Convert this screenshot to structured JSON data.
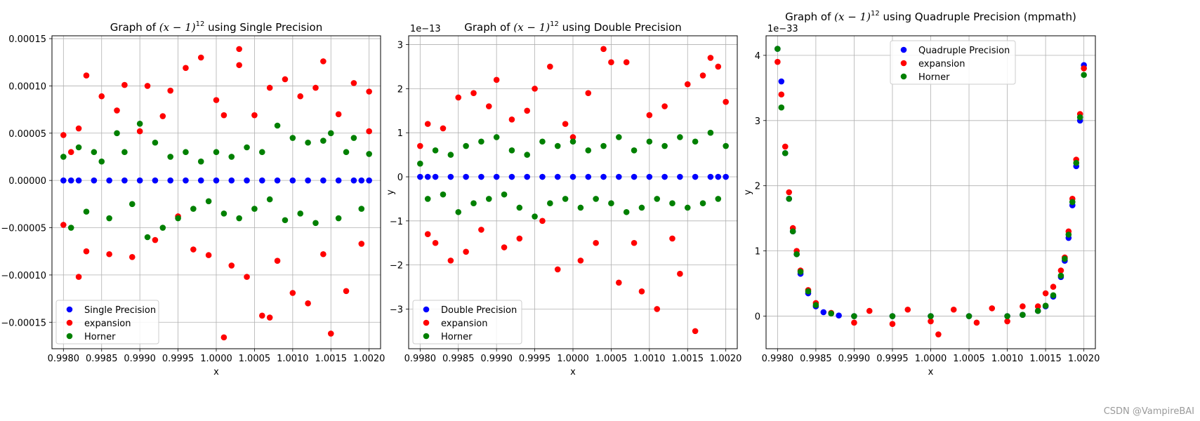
{
  "watermark": "CSDN @VampireBAI",
  "colors": {
    "blue": "#0000ff",
    "red": "#ff0000",
    "green": "#008000",
    "grid": "#b0b0b0"
  },
  "chart_data": [
    {
      "type": "scatter",
      "title": "Graph of $(x-1)^{12}$ using Single Precision",
      "title_prefix": "Graph of ",
      "title_suffix": " using Single Precision",
      "xlabel": "x",
      "ylabel": "",
      "xlim": [
        0.99785,
        1.00215
      ],
      "ylim": [
        -0.000178,
        0.000153
      ],
      "xticks": [
        0.998,
        0.9985,
        0.999,
        0.9995,
        1.0,
        1.0005,
        1.001,
        1.0015,
        1.002
      ],
      "xtick_labels": [
        "0.9980",
        "0.9985",
        "0.9990",
        "0.9995",
        "1.0000",
        "1.0005",
        "1.0010",
        "1.0015",
        "1.0020"
      ],
      "yticks": [
        -0.00015,
        -0.0001,
        -5e-05,
        0,
        5e-05,
        0.0001,
        0.00015
      ],
      "ytick_labels": [
        "−0.00015",
        "−0.00010",
        "−0.00005",
        "0.00000",
        "0.00005",
        "0.00010",
        "0.00015"
      ],
      "grid": true,
      "legend_position": "lower-left",
      "series": [
        {
          "name": "Single Precision",
          "color": "#0000ff",
          "x": [
            0.998,
            0.9981,
            0.9982,
            0.9984,
            0.9986,
            0.9988,
            0.999,
            0.9992,
            0.9994,
            0.9996,
            0.9998,
            1.0,
            1.0002,
            1.0004,
            1.0006,
            1.0008,
            1.001,
            1.0012,
            1.0014,
            1.0016,
            1.0018,
            1.0019,
            1.002
          ],
          "y": [
            0,
            0,
            0,
            0,
            0,
            0,
            0,
            0,
            0,
            0,
            0,
            0,
            0,
            0,
            0,
            0,
            0,
            0,
            0,
            0,
            0,
            0,
            0
          ]
        },
        {
          "name": "expansion",
          "color": "#ff0000",
          "x": [
            0.998,
            0.998,
            0.9981,
            0.9982,
            0.9982,
            0.9983,
            0.9983,
            0.9985,
            0.9986,
            0.9987,
            0.9988,
            0.9989,
            0.999,
            0.9991,
            0.9992,
            0.9993,
            0.9994,
            0.9995,
            0.9996,
            0.9997,
            0.9998,
            0.9999,
            1.0,
            1.0001,
            1.0001,
            1.0002,
            1.0003,
            1.0003,
            1.0004,
            1.0005,
            1.0006,
            1.0007,
            1.0007,
            1.0008,
            1.0009,
            1.001,
            1.0011,
            1.0012,
            1.0013,
            1.0014,
            1.0014,
            1.0015,
            1.0016,
            1.0017,
            1.0018,
            1.0019,
            1.002,
            1.002
          ],
          "y": [
            4.8e-05,
            -4.7e-05,
            3e-05,
            -0.000102,
            5.5e-05,
            0.000111,
            -7.5e-05,
            8.9e-05,
            -7.8e-05,
            7.4e-05,
            0.000101,
            -8.1e-05,
            5.2e-05,
            0.0001,
            -6.3e-05,
            6.8e-05,
            9.5e-05,
            -3.8e-05,
            0.000119,
            -7.3e-05,
            0.00013,
            -7.9e-05,
            8.5e-05,
            -0.000166,
            6.9e-05,
            -9e-05,
            0.000139,
            0.000122,
            -0.000102,
            6.9e-05,
            -0.000143,
            -0.000145,
            9.8e-05,
            -8.5e-05,
            0.000107,
            -0.000119,
            8.9e-05,
            -0.00013,
            9.8e-05,
            -7.8e-05,
            0.000126,
            -0.000162,
            7e-05,
            -0.000117,
            0.000103,
            -6.7e-05,
            9.4e-05,
            5.2e-05
          ]
        },
        {
          "name": "Horner",
          "color": "#008000",
          "x": [
            0.998,
            0.9981,
            0.9982,
            0.9983,
            0.9984,
            0.9985,
            0.9986,
            0.9987,
            0.9988,
            0.9989,
            0.999,
            0.9991,
            0.9992,
            0.9993,
            0.9994,
            0.9995,
            0.9996,
            0.9997,
            0.9998,
            0.9999,
            1.0,
            1.0001,
            1.0002,
            1.0003,
            1.0004,
            1.0005,
            1.0006,
            1.0007,
            1.0008,
            1.0009,
            1.001,
            1.0011,
            1.0012,
            1.0013,
            1.0014,
            1.0015,
            1.0016,
            1.0017,
            1.0018,
            1.0019,
            1.002
          ],
          "y": [
            2.5e-05,
            -5e-05,
            3.5e-05,
            -3.3e-05,
            3e-05,
            2e-05,
            -4e-05,
            5e-05,
            3e-05,
            -2.5e-05,
            6e-05,
            -6e-05,
            4e-05,
            -5e-05,
            2.5e-05,
            -4e-05,
            3e-05,
            -3e-05,
            2e-05,
            -2.2e-05,
            3e-05,
            -3.5e-05,
            2.5e-05,
            -4e-05,
            3.5e-05,
            -3e-05,
            3e-05,
            -2e-05,
            5.8e-05,
            -4.2e-05,
            4.5e-05,
            -3.5e-05,
            4e-05,
            -4.5e-05,
            4.2e-05,
            5e-05,
            -4e-05,
            3e-05,
            4.5e-05,
            -3e-05,
            2.8e-05
          ]
        }
      ]
    },
    {
      "type": "scatter",
      "title": "Graph of $(x-1)^{12}$ using Double Precision",
      "title_prefix": "Graph of ",
      "title_suffix": " using Double Precision",
      "xlabel": "x",
      "ylabel": "y",
      "offset_text": "1e−13",
      "xlim": [
        0.99785,
        1.00215
      ],
      "ylim": [
        -3.9,
        3.2
      ],
      "xticks": [
        0.998,
        0.9985,
        0.999,
        0.9995,
        1.0,
        1.0005,
        1.001,
        1.0015,
        1.002
      ],
      "xtick_labels": [
        "0.9980",
        "0.9985",
        "0.9990",
        "0.9995",
        "1.0000",
        "1.0005",
        "1.0010",
        "1.0015",
        "1.0020"
      ],
      "yticks": [
        -3,
        -2,
        -1,
        0,
        1,
        2,
        3
      ],
      "ytick_labels": [
        "−3",
        "−2",
        "−1",
        "0",
        "1",
        "2",
        "3"
      ],
      "grid": true,
      "legend_position": "lower-left",
      "series": [
        {
          "name": "Double Precision",
          "color": "#0000ff",
          "x": [
            0.998,
            0.9981,
            0.9982,
            0.9984,
            0.9986,
            0.9988,
            0.999,
            0.9992,
            0.9994,
            0.9996,
            0.9998,
            1.0,
            1.0002,
            1.0004,
            1.0006,
            1.0008,
            1.001,
            1.0012,
            1.0014,
            1.0016,
            1.0018,
            1.0019,
            1.002
          ],
          "y": [
            0,
            0,
            0,
            0,
            0,
            0,
            0,
            0,
            0,
            0,
            0,
            0,
            0,
            0,
            0,
            0,
            0,
            0,
            0,
            0,
            0,
            0,
            0
          ]
        },
        {
          "name": "expansion",
          "color": "#ff0000",
          "x": [
            0.998,
            0.9981,
            0.9981,
            0.9982,
            0.9983,
            0.9984,
            0.9985,
            0.9986,
            0.9987,
            0.9988,
            0.9989,
            0.999,
            0.9991,
            0.9992,
            0.9993,
            0.9994,
            0.9995,
            0.9996,
            0.9997,
            0.9998,
            0.9999,
            1.0,
            1.0001,
            1.0002,
            1.0003,
            1.0004,
            1.0005,
            1.0006,
            1.0007,
            1.0008,
            1.0009,
            1.001,
            1.0011,
            1.0012,
            1.0013,
            1.0014,
            1.0015,
            1.0016,
            1.0017,
            1.0018,
            1.0019,
            1.002
          ],
          "y": [
            0.7,
            -1.3,
            1.2,
            -1.5,
            1.1,
            -1.9,
            1.8,
            -1.7,
            1.9,
            -1.2,
            1.6,
            2.2,
            -1.6,
            1.3,
            -1.4,
            1.5,
            2.0,
            -1.0,
            2.5,
            -2.1,
            1.2,
            0.9,
            -1.9,
            1.9,
            -1.5,
            2.9,
            2.6,
            -2.4,
            2.6,
            -1.5,
            -2.6,
            1.4,
            -3.0,
            1.6,
            -1.4,
            -2.2,
            2.1,
            -3.5,
            2.3,
            2.7,
            2.5,
            1.7
          ]
        },
        {
          "name": "Horner",
          "color": "#008000",
          "x": [
            0.998,
            0.9981,
            0.9982,
            0.9983,
            0.9984,
            0.9985,
            0.9986,
            0.9987,
            0.9988,
            0.9989,
            0.999,
            0.9991,
            0.9992,
            0.9993,
            0.9994,
            0.9995,
            0.9996,
            0.9997,
            0.9998,
            0.9999,
            1.0,
            1.0001,
            1.0002,
            1.0003,
            1.0004,
            1.0005,
            1.0006,
            1.0007,
            1.0008,
            1.0009,
            1.001,
            1.0011,
            1.0012,
            1.0013,
            1.0014,
            1.0015,
            1.0016,
            1.0017,
            1.0018,
            1.0019,
            1.002
          ],
          "y": [
            0.3,
            -0.5,
            0.6,
            -0.4,
            0.5,
            -0.8,
            0.7,
            -0.6,
            0.8,
            -0.5,
            0.9,
            -0.4,
            0.6,
            -0.7,
            0.5,
            -0.9,
            0.8,
            -0.6,
            0.7,
            -0.5,
            0.8,
            -0.7,
            0.6,
            -0.5,
            0.7,
            -0.6,
            0.9,
            -0.8,
            0.6,
            -0.7,
            0.8,
            -0.5,
            0.7,
            -0.6,
            0.9,
            -0.7,
            0.8,
            -0.6,
            1.0,
            -0.5,
            0.7
          ]
        }
      ]
    },
    {
      "type": "scatter",
      "title": "Graph of $(x-1)^{12}$ using Quadruple Precision (mpmath)",
      "title_prefix": "Graph of ",
      "title_suffix": " using Quadruple Precision (mpmath)",
      "xlabel": "x",
      "ylabel": "y",
      "offset_text": "1e−33",
      "xlim": [
        0.99785,
        1.00215
      ],
      "ylim": [
        -0.5,
        4.3
      ],
      "xticks": [
        0.998,
        0.9985,
        0.999,
        0.9995,
        1.0,
        1.0005,
        1.001,
        1.0015,
        1.002
      ],
      "xtick_labels": [
        "0.9980",
        "0.9985",
        "0.9990",
        "0.9995",
        "1.0000",
        "1.0005",
        "1.0010",
        "1.0015",
        "1.0020"
      ],
      "yticks": [
        0,
        1,
        2,
        3,
        4
      ],
      "ytick_labels": [
        "0",
        "1",
        "2",
        "3",
        "4"
      ],
      "grid": true,
      "legend_position": "upper-center",
      "series": [
        {
          "name": "Quadruple Precision",
          "color": "#0000ff",
          "x": [
            0.998,
            0.99805,
            0.9981,
            0.99815,
            0.9982,
            0.99825,
            0.9983,
            0.9984,
            0.9985,
            0.9986,
            0.9988,
            0.999,
            0.9995,
            1.0,
            1.0005,
            1.001,
            1.0012,
            1.0014,
            1.0015,
            1.0016,
            1.0017,
            1.00175,
            1.0018,
            1.00185,
            1.0019,
            1.00195,
            1.002
          ],
          "y": [
            4.1,
            3.6,
            2.5,
            1.8,
            1.3,
            0.95,
            0.65,
            0.35,
            0.15,
            0.06,
            0.01,
            0.0,
            0.0,
            0.0,
            0.0,
            0.0,
            0.02,
            0.08,
            0.15,
            0.3,
            0.6,
            0.85,
            1.2,
            1.7,
            2.3,
            3.0,
            3.85
          ]
        },
        {
          "name": "expansion",
          "color": "#ff0000",
          "x": [
            0.998,
            0.99805,
            0.9981,
            0.99815,
            0.9982,
            0.99825,
            0.9983,
            0.9984,
            0.9985,
            0.9987,
            0.999,
            0.9992,
            0.9995,
            0.9997,
            1.0,
            1.0001,
            1.0003,
            1.0006,
            1.0008,
            1.001,
            1.0012,
            1.0014,
            1.0015,
            1.0016,
            1.0017,
            1.00175,
            1.0018,
            1.00185,
            1.0019,
            1.00195,
            1.002
          ],
          "y": [
            3.9,
            3.4,
            2.6,
            1.9,
            1.35,
            1.0,
            0.7,
            0.4,
            0.2,
            0.05,
            -0.1,
            0.08,
            -0.12,
            0.1,
            -0.08,
            -0.28,
            0.1,
            -0.1,
            0.12,
            -0.08,
            0.15,
            0.15,
            0.35,
            0.45,
            0.7,
            0.9,
            1.3,
            1.8,
            2.4,
            3.1,
            3.8
          ]
        },
        {
          "name": "Horner",
          "color": "#008000",
          "x": [
            0.998,
            0.99805,
            0.9981,
            0.99815,
            0.9982,
            0.99825,
            0.9983,
            0.9984,
            0.9985,
            0.9987,
            0.999,
            0.9995,
            1.0,
            1.0005,
            1.001,
            1.0012,
            1.0014,
            1.0015,
            1.0016,
            1.0017,
            1.00175,
            1.0018,
            1.00185,
            1.0019,
            1.00195,
            1.002
          ],
          "y": [
            4.1,
            3.2,
            2.5,
            1.8,
            1.3,
            0.95,
            0.68,
            0.38,
            0.17,
            0.04,
            0.0,
            0.0,
            0.0,
            0.0,
            0.0,
            0.02,
            0.08,
            0.16,
            0.32,
            0.62,
            0.88,
            1.25,
            1.75,
            2.35,
            3.05,
            3.7
          ]
        }
      ]
    }
  ]
}
